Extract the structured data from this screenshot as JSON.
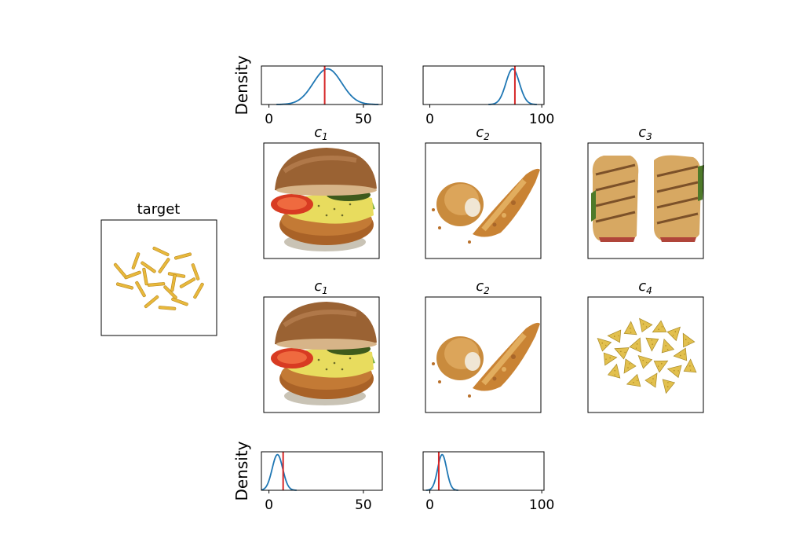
{
  "figure": {
    "target_title": "target",
    "target_image": "french-fries",
    "rows": [
      {
        "panels": [
          {
            "title_base": "c",
            "title_sub": "1",
            "image": "burger"
          },
          {
            "title_base": "c",
            "title_sub": "2",
            "image": "fried-chicken"
          },
          {
            "title_base": "c",
            "title_sub": "3",
            "image": "panini-sandwich"
          }
        ]
      },
      {
        "panels": [
          {
            "title_base": "c",
            "title_sub": "1",
            "image": "burger"
          },
          {
            "title_base": "c",
            "title_sub": "2",
            "image": "fried-chicken"
          },
          {
            "title_base": "c",
            "title_sub": "4",
            "image": "tortilla-chips"
          }
        ]
      }
    ]
  },
  "colors": {
    "density_line": "#1f77b4",
    "marker_line": "#d62728"
  },
  "chart_data": [
    {
      "type": "line",
      "position": "top-left",
      "ylabel": "Density",
      "xlim": [
        -4,
        60
      ],
      "xticks": [
        0,
        50
      ],
      "tick_labels": [
        "0",
        "50"
      ],
      "series": [
        {
          "mean": 31,
          "sd": 7.5
        }
      ],
      "marker_x": 29.5
    },
    {
      "type": "line",
      "position": "top-right",
      "ylabel": "",
      "xlim": [
        -6,
        102
      ],
      "xticks": [
        0,
        100
      ],
      "tick_labels": [
        "0",
        "100"
      ],
      "series": [
        {
          "mean": 74,
          "sd": 6
        }
      ],
      "marker_x": 76
    },
    {
      "type": "line",
      "position": "bottom-left",
      "ylabel": "Density",
      "xlim": [
        -4,
        60
      ],
      "xticks": [
        0,
        50
      ],
      "tick_labels": [
        "0",
        "50"
      ],
      "series": [
        {
          "mean": 4.5,
          "sd": 2.8
        }
      ],
      "marker_x": 7.5
    },
    {
      "type": "line",
      "position": "bottom-right",
      "ylabel": "",
      "xlim": [
        -6,
        102
      ],
      "xticks": [
        0,
        100
      ],
      "tick_labels": [
        "0",
        "100"
      ],
      "series": [
        {
          "mean": 11,
          "sd": 4
        }
      ],
      "marker_x": 8
    }
  ]
}
